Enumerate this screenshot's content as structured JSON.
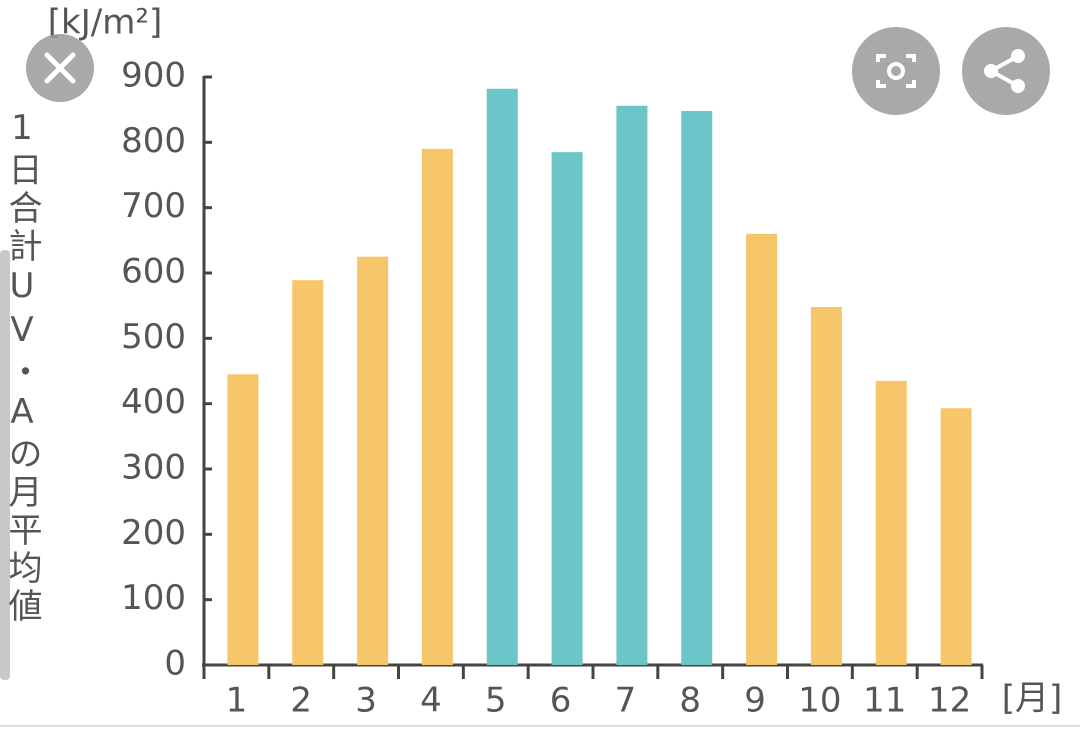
{
  "chart_data": {
    "type": "bar",
    "y_unit_label": "[kJ/m²]",
    "y_axis_label": "1日合計UV・Aの月平均値",
    "x_unit_label": "[月]",
    "categories": [
      "1",
      "2",
      "3",
      "4",
      "5",
      "6",
      "7",
      "8",
      "9",
      "10",
      "11",
      "12"
    ],
    "values": [
      445,
      589,
      625,
      790,
      882,
      785,
      856,
      848,
      660,
      548,
      435,
      393
    ],
    "colors": [
      "#f8c66a",
      "#f8c66a",
      "#f8c66a",
      "#f8c66a",
      "#6cc6c8",
      "#6cc6c8",
      "#6cc6c8",
      "#6cc6c8",
      "#f8c66a",
      "#f8c66a",
      "#f8c66a",
      "#f8c66a"
    ],
    "ylim": [
      0,
      900
    ],
    "yticks": [
      0,
      100,
      200,
      300,
      400,
      500,
      600,
      700,
      800,
      900
    ],
    "grid": false
  }
}
